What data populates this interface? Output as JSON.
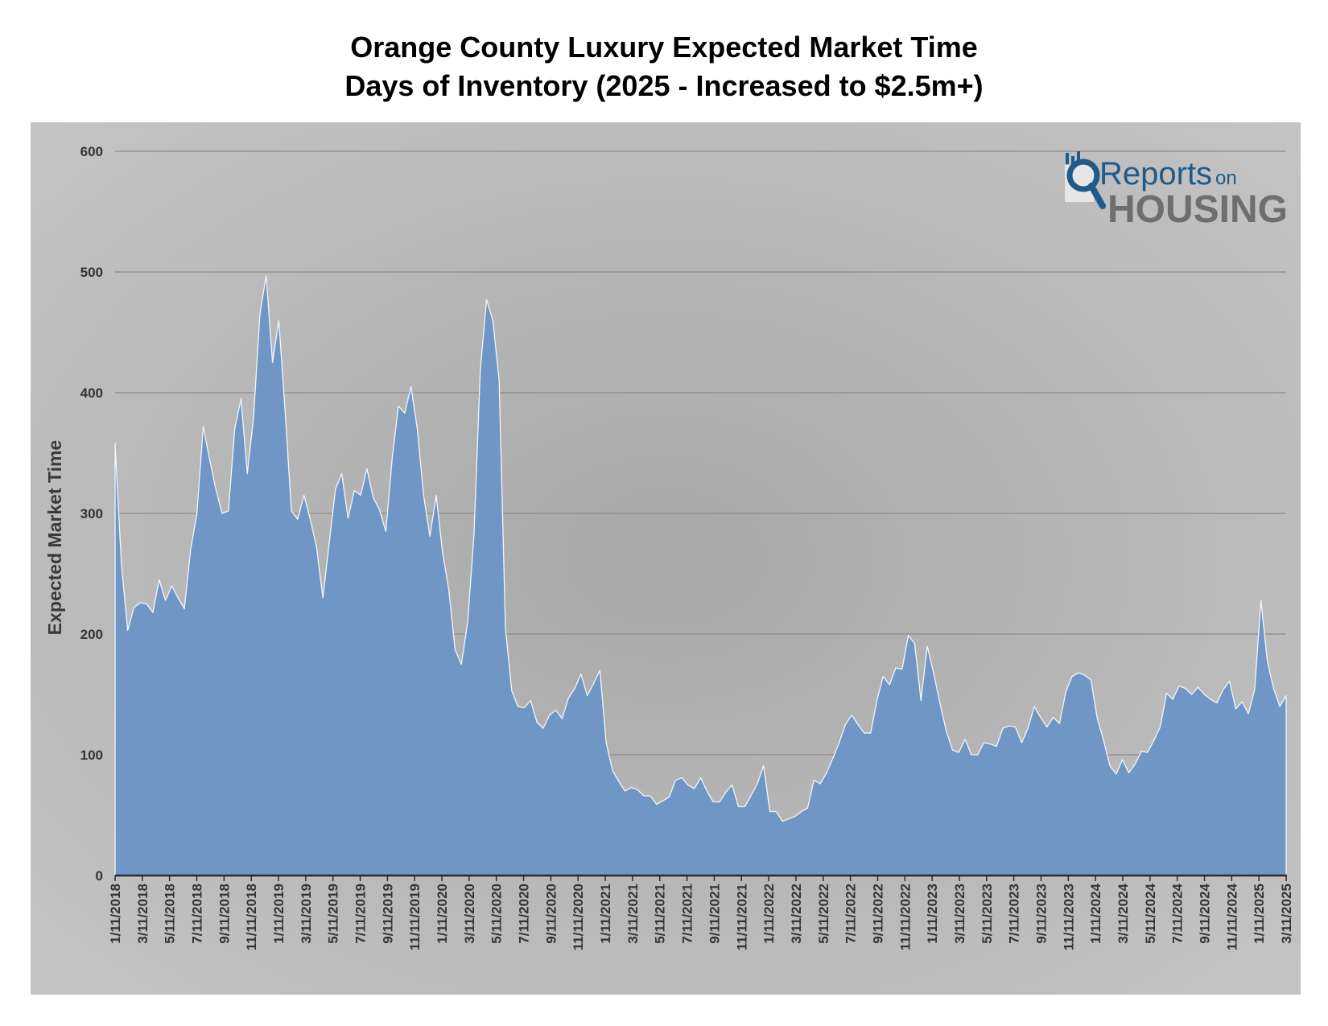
{
  "chart_data": {
    "type": "area",
    "title": "Orange County Luxury Expected Market Time",
    "subtitle": "Days of Inventory  (2025 - Increased to $2.5m+)",
    "ylabel": "Expected Market Time",
    "xlabel": "",
    "ylim": [
      0,
      600
    ],
    "yticks": [
      "0",
      "100",
      "200",
      "300",
      "400",
      "500",
      "600"
    ],
    "grid": "horizontal",
    "x_start": "1/11/2018",
    "x_end": "3/11/2025",
    "x_interval": "2 weeks",
    "xtick_labels": [
      "1/11/2018",
      "3/11/2018",
      "5/11/2018",
      "7/11/2018",
      "9/11/2018",
      "11/11/2018",
      "1/11/2019",
      "3/11/2019",
      "5/11/2019",
      "7/11/2019",
      "9/11/2019",
      "11/11/2019",
      "1/11/2020",
      "3/11/2020",
      "5/11/2020",
      "7/11/2020",
      "9/11/2020",
      "11/11/2020",
      "1/11/2021",
      "3/11/2021",
      "5/11/2021",
      "7/11/2021",
      "9/11/2021",
      "11/11/2021",
      "1/11/2022",
      "3/11/2022",
      "5/11/2022",
      "7/11/2022",
      "9/11/2022",
      "11/11/2022",
      "1/11/2023",
      "3/11/2023",
      "5/11/2023",
      "7/11/2023",
      "9/11/2023",
      "11/11/2023",
      "1/11/2024",
      "3/11/2024",
      "5/11/2024",
      "7/11/2024",
      "9/11/2024",
      "11/11/2024",
      "1/11/2025",
      "3/11/2025"
    ],
    "values": [
      358,
      258,
      203,
      222,
      226,
      225,
      218,
      245,
      228,
      240,
      230,
      221,
      270,
      300,
      372,
      345,
      320,
      300,
      302,
      370,
      395,
      333,
      380,
      465,
      497,
      425,
      460,
      385,
      302,
      295,
      315,
      295,
      272,
      230,
      275,
      320,
      333,
      296,
      319,
      315,
      337,
      313,
      303,
      285,
      345,
      389,
      383,
      405,
      370,
      315,
      281,
      315,
      268,
      237,
      187,
      175,
      210,
      282,
      418,
      477,
      460,
      410,
      205,
      153,
      140,
      139,
      145,
      127,
      122,
      133,
      137,
      130,
      147,
      155,
      167,
      149,
      159,
      170,
      110,
      87,
      78,
      70,
      73,
      71,
      66,
      66,
      59,
      62,
      65,
      79,
      81,
      75,
      72,
      81,
      70,
      61,
      61,
      69,
      75,
      57,
      57,
      66,
      76,
      91,
      53,
      53,
      45,
      47,
      49,
      53,
      56,
      79,
      76,
      85,
      97,
      110,
      125,
      133,
      125,
      118,
      118,
      145,
      165,
      158,
      172,
      171,
      199,
      192,
      145,
      190,
      168,
      143,
      120,
      104,
      102,
      113,
      100,
      100,
      110,
      109,
      107,
      122,
      124,
      123,
      110,
      122,
      140,
      131,
      123,
      131,
      126,
      152,
      165,
      168,
      166,
      162,
      130,
      112,
      91,
      84,
      96,
      85,
      92,
      103,
      102,
      112,
      123,
      151,
      146,
      157,
      155,
      150,
      156,
      150,
      146,
      143,
      154,
      161,
      138,
      144,
      134,
      154,
      228,
      178,
      155,
      140,
      149
    ]
  },
  "logo": {
    "line1": "Reports",
    "line1_suffix": "on",
    "line2": "HOUSING"
  },
  "colors": {
    "area_fill": "#6f96c4",
    "area_edge": "#f2f6fb",
    "plot_bg_light": "#c2c2c2",
    "plot_bg_dark": "#a6a6a6",
    "grid": "#8a8a8a",
    "logo_blue": "#1e5b8a",
    "logo_gray": "#6e6e6e"
  }
}
